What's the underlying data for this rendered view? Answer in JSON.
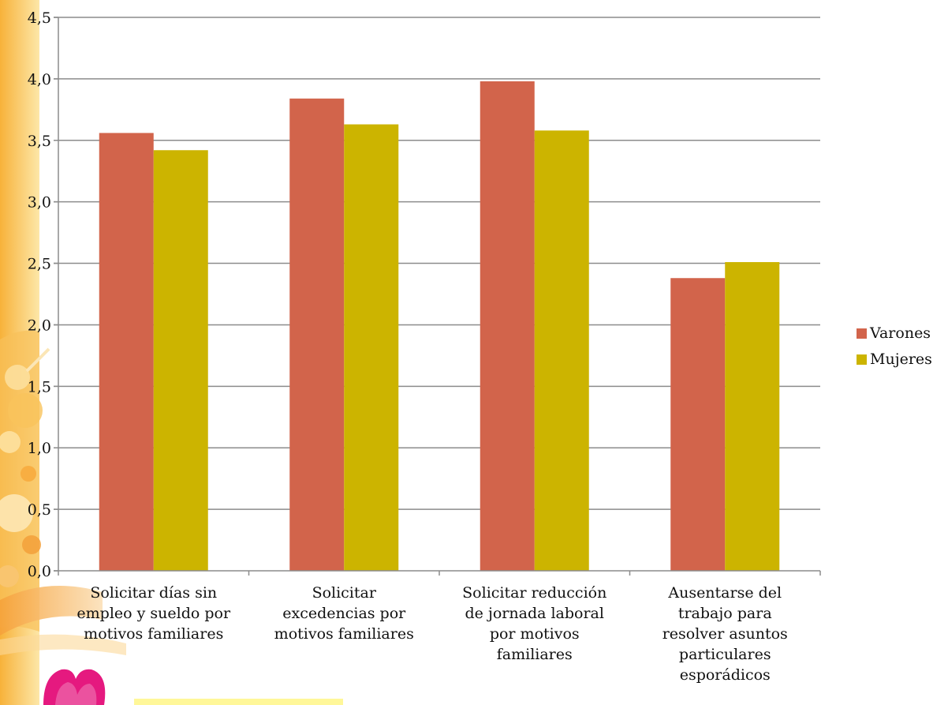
{
  "chart_data": {
    "type": "bar",
    "categories": [
      [
        "Solicitar días sin",
        "empleo y sueldo por",
        "motivos familiares"
      ],
      [
        "Solicitar",
        "excedencias por",
        "motivos familiares"
      ],
      [
        "Solicitar reducción",
        "de jornada laboral",
        "por motivos",
        "familiares"
      ],
      [
        "Ausentarse del",
        "trabajo para",
        "resolver asuntos",
        "particulares",
        "esporádicos"
      ]
    ],
    "series": [
      {
        "name": "Varones",
        "color": "#d2644b",
        "values": [
          3.56,
          3.84,
          3.98,
          2.38
        ]
      },
      {
        "name": "Mujeres",
        "color": "#ccb400",
        "values": [
          3.42,
          3.63,
          3.58,
          2.51
        ]
      }
    ],
    "ylim": [
      0,
      4.5
    ],
    "yticks": [
      "0,0",
      "0,5",
      "1,0",
      "1,5",
      "2,0",
      "2,5",
      "3,0",
      "3,5",
      "4,0",
      "4,5"
    ],
    "ytick_values": [
      0,
      0.5,
      1.0,
      1.5,
      2.0,
      2.5,
      3.0,
      3.5,
      4.0,
      4.5
    ],
    "grid": true,
    "legend_position": "right",
    "title": "",
    "xlabel": "",
    "ylabel": ""
  }
}
